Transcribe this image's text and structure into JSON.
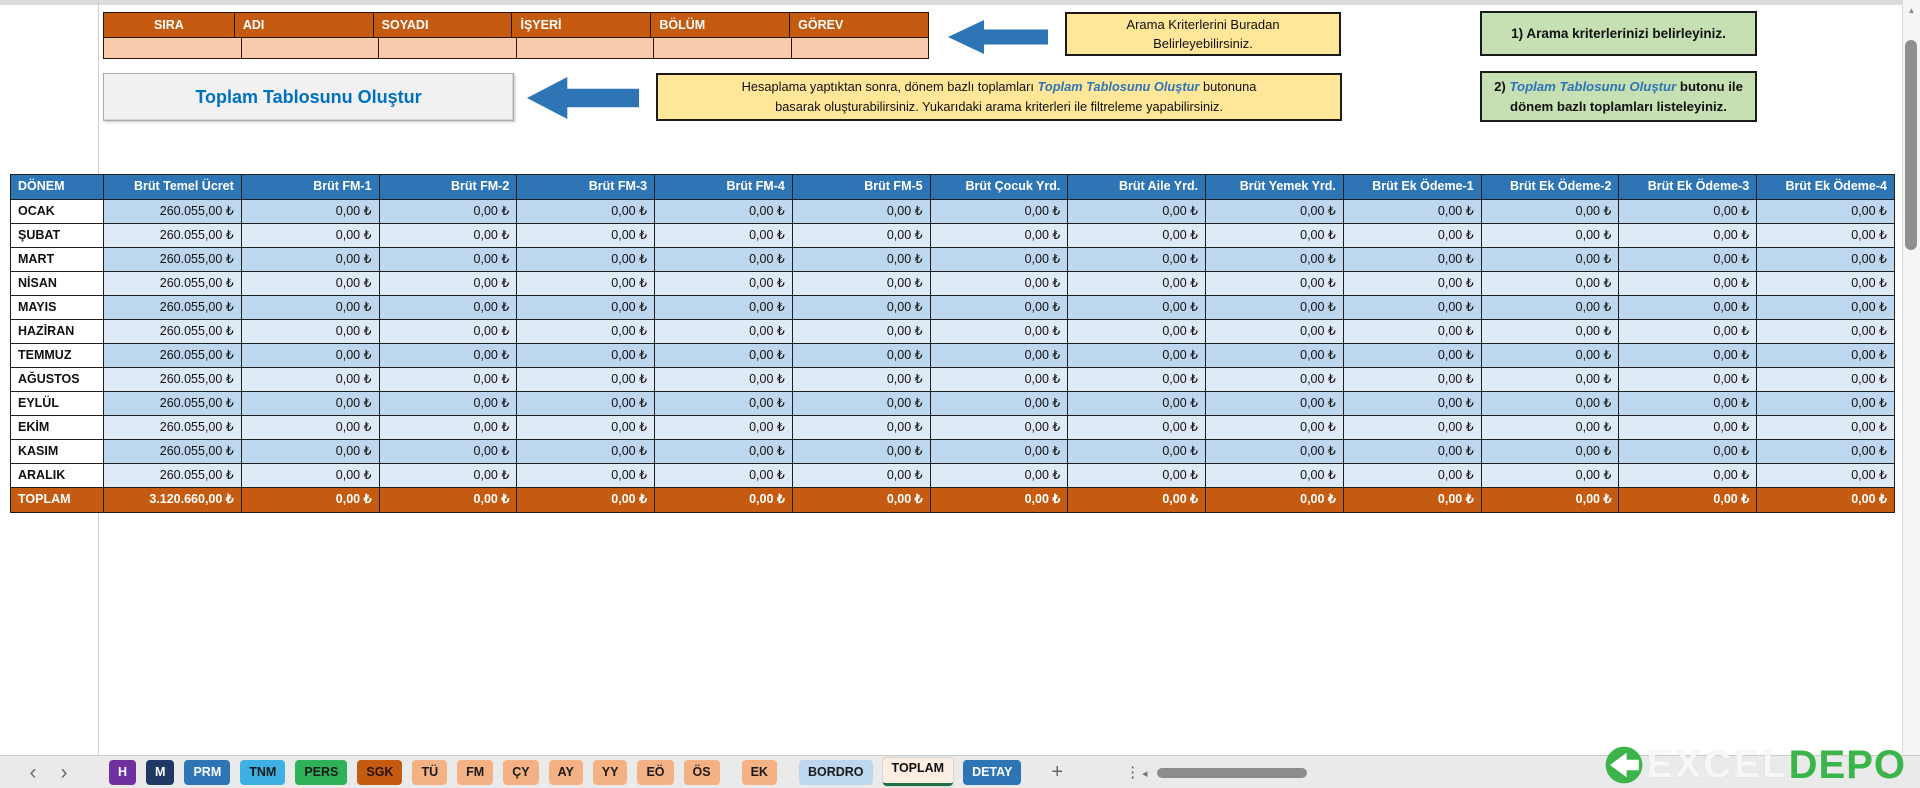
{
  "colors": {
    "header_orange": "#C55A11",
    "input_peach": "#F8CBAD",
    "table_header_blue": "#2E75B6",
    "row_blue": "#BDD7EE",
    "row_blue_light": "#DEEBF7",
    "note_yellow": "#FFE699",
    "note_green": "#C6E0B4",
    "total_orange": "#C55A11",
    "arrow_blue": "#2E75B6",
    "button_text_blue": "#0070C0",
    "logo_green": "#3BB54A"
  },
  "search_table": {
    "headers": [
      "SIRA",
      "ADI",
      "SOYADI",
      "İŞYERİ",
      "BÖLÜM",
      "GÖREV"
    ]
  },
  "button": {
    "label": "Toplam Tablosunu Oluştur"
  },
  "annotations": {
    "search_hint_line1": "Arama Kriterlerini Buradan",
    "search_hint_line2": "Belirleyebilirsiniz.",
    "step1": "1) Arama kriterlerinizi belirleyiniz.",
    "step2_pre": "2) ",
    "step2_em": "Toplam Tablosunu Oluştur",
    "step2_post": " butonu ile dönem bazlı toplamları listeleyiniz.",
    "hint_pre": "Hesaplama yaptıktan sonra, dönem bazlı toplamları ",
    "hint_em": "Toplam Tablosunu Oluştur",
    "hint_post": "  butonuna",
    "hint_line2": "basarak oluşturabilirsiniz. Yukarıdaki arama kriterleri ile filtreleme yapabilirsiniz."
  },
  "totals_table": {
    "columns": [
      "DÖNEM",
      "Brüt Temel Ücret",
      "Brüt FM-1",
      "Brüt FM-2",
      "Brüt FM-3",
      "Brüt FM-4",
      "Brüt FM-5",
      "Brüt Çocuk Yrd.",
      "Brüt Aile Yrd.",
      "Brüt Yemek Yrd.",
      "Brüt Ek Ödeme-1",
      "Brüt Ek Ödeme-2",
      "Brüt Ek Ödeme-3",
      "Brüt Ek Ödeme-4"
    ],
    "rows": [
      {
        "month": "OCAK",
        "values": [
          "260.055,00 ₺",
          "0,00 ₺",
          "0,00 ₺",
          "0,00 ₺",
          "0,00 ₺",
          "0,00 ₺",
          "0,00 ₺",
          "0,00 ₺",
          "0,00 ₺",
          "0,00 ₺",
          "0,00 ₺",
          "0,00 ₺",
          "0,00 ₺"
        ]
      },
      {
        "month": "ŞUBAT",
        "values": [
          "260.055,00 ₺",
          "0,00 ₺",
          "0,00 ₺",
          "0,00 ₺",
          "0,00 ₺",
          "0,00 ₺",
          "0,00 ₺",
          "0,00 ₺",
          "0,00 ₺",
          "0,00 ₺",
          "0,00 ₺",
          "0,00 ₺",
          "0,00 ₺"
        ]
      },
      {
        "month": "MART",
        "values": [
          "260.055,00 ₺",
          "0,00 ₺",
          "0,00 ₺",
          "0,00 ₺",
          "0,00 ₺",
          "0,00 ₺",
          "0,00 ₺",
          "0,00 ₺",
          "0,00 ₺",
          "0,00 ₺",
          "0,00 ₺",
          "0,00 ₺",
          "0,00 ₺"
        ]
      },
      {
        "month": "NİSAN",
        "values": [
          "260.055,00 ₺",
          "0,00 ₺",
          "0,00 ₺",
          "0,00 ₺",
          "0,00 ₺",
          "0,00 ₺",
          "0,00 ₺",
          "0,00 ₺",
          "0,00 ₺",
          "0,00 ₺",
          "0,00 ₺",
          "0,00 ₺",
          "0,00 ₺"
        ]
      },
      {
        "month": "MAYIS",
        "values": [
          "260.055,00 ₺",
          "0,00 ₺",
          "0,00 ₺",
          "0,00 ₺",
          "0,00 ₺",
          "0,00 ₺",
          "0,00 ₺",
          "0,00 ₺",
          "0,00 ₺",
          "0,00 ₺",
          "0,00 ₺",
          "0,00 ₺",
          "0,00 ₺"
        ]
      },
      {
        "month": "HAZİRAN",
        "values": [
          "260.055,00 ₺",
          "0,00 ₺",
          "0,00 ₺",
          "0,00 ₺",
          "0,00 ₺",
          "0,00 ₺",
          "0,00 ₺",
          "0,00 ₺",
          "0,00 ₺",
          "0,00 ₺",
          "0,00 ₺",
          "0,00 ₺",
          "0,00 ₺"
        ]
      },
      {
        "month": "TEMMUZ",
        "values": [
          "260.055,00 ₺",
          "0,00 ₺",
          "0,00 ₺",
          "0,00 ₺",
          "0,00 ₺",
          "0,00 ₺",
          "0,00 ₺",
          "0,00 ₺",
          "0,00 ₺",
          "0,00 ₺",
          "0,00 ₺",
          "0,00 ₺",
          "0,00 ₺"
        ]
      },
      {
        "month": "AĞUSTOS",
        "values": [
          "260.055,00 ₺",
          "0,00 ₺",
          "0,00 ₺",
          "0,00 ₺",
          "0,00 ₺",
          "0,00 ₺",
          "0,00 ₺",
          "0,00 ₺",
          "0,00 ₺",
          "0,00 ₺",
          "0,00 ₺",
          "0,00 ₺",
          "0,00 ₺"
        ]
      },
      {
        "month": "EYLÜL",
        "values": [
          "260.055,00 ₺",
          "0,00 ₺",
          "0,00 ₺",
          "0,00 ₺",
          "0,00 ₺",
          "0,00 ₺",
          "0,00 ₺",
          "0,00 ₺",
          "0,00 ₺",
          "0,00 ₺",
          "0,00 ₺",
          "0,00 ₺",
          "0,00 ₺"
        ]
      },
      {
        "month": "EKİM",
        "values": [
          "260.055,00 ₺",
          "0,00 ₺",
          "0,00 ₺",
          "0,00 ₺",
          "0,00 ₺",
          "0,00 ₺",
          "0,00 ₺",
          "0,00 ₺",
          "0,00 ₺",
          "0,00 ₺",
          "0,00 ₺",
          "0,00 ₺",
          "0,00 ₺"
        ]
      },
      {
        "month": "KASIM",
        "values": [
          "260.055,00 ₺",
          "0,00 ₺",
          "0,00 ₺",
          "0,00 ₺",
          "0,00 ₺",
          "0,00 ₺",
          "0,00 ₺",
          "0,00 ₺",
          "0,00 ₺",
          "0,00 ₺",
          "0,00 ₺",
          "0,00 ₺",
          "0,00 ₺"
        ]
      },
      {
        "month": "ARALIK",
        "values": [
          "260.055,00 ₺",
          "0,00 ₺",
          "0,00 ₺",
          "0,00 ₺",
          "0,00 ₺",
          "0,00 ₺",
          "0,00 ₺",
          "0,00 ₺",
          "0,00 ₺",
          "0,00 ₺",
          "0,00 ₺",
          "0,00 ₺",
          "0,00 ₺"
        ]
      }
    ],
    "total_row": {
      "label": "TOPLAM",
      "values": [
        "3.120.660,00 ₺",
        "0,00 ₺",
        "0,00 ₺",
        "0,00 ₺",
        "0,00 ₺",
        "0,00 ₺",
        "0,00 ₺",
        "0,00 ₺",
        "0,00 ₺",
        "0,00 ₺",
        "0,00 ₺",
        "0,00 ₺",
        "0,00 ₺"
      ]
    }
  },
  "sheet_tabs": [
    {
      "label": "H",
      "bg": "#7030A0",
      "fg": "#FFFFFF"
    },
    {
      "label": "M",
      "bg": "#1F3864",
      "fg": "#FFFFFF"
    },
    {
      "label": "PRM",
      "bg": "#2E75B6",
      "fg": "#FFFFFF"
    },
    {
      "label": "TNM",
      "bg": "#3FB0E4",
      "fg": "#1A1A1A"
    },
    {
      "label": "PERS",
      "bg": "#2DB257",
      "fg": "#1A1A1A"
    },
    {
      "label": "SGK",
      "bg": "#C55A11",
      "fg": "#26130A"
    },
    {
      "label": "TÜ",
      "bg": "#F4B183",
      "fg": "#1A1A1A"
    },
    {
      "label": "FM",
      "bg": "#F4B183",
      "fg": "#1A1A1A"
    },
    {
      "label": "ÇY",
      "bg": "#F4B183",
      "fg": "#1A1A1A"
    },
    {
      "label": "AY",
      "bg": "#F4B183",
      "fg": "#1A1A1A"
    },
    {
      "label": "YY",
      "bg": "#F4B183",
      "fg": "#1A1A1A"
    },
    {
      "label": "EÖ",
      "bg": "#F4B183",
      "fg": "#1A1A1A"
    },
    {
      "label": "ÖS",
      "bg": "#F4B183",
      "fg": "#1A1A1A"
    },
    {
      "label": "EK",
      "bg": "#F4B183",
      "fg": "#1A1A1A",
      "gap_before": true
    },
    {
      "label": "BORDRO",
      "bg": "#BDD7EE",
      "fg": "#1A1A1A",
      "gap_before": true
    },
    {
      "label": "TOPLAM",
      "bg": "#FCEEE2",
      "fg": "#111111",
      "active": true,
      "underline": "#1E7145"
    },
    {
      "label": "DETAY",
      "bg": "#2E75B6",
      "fg": "#FFFFFF"
    }
  ],
  "icons": {
    "prev": "‹",
    "next": "›",
    "add": "+",
    "more": "⋮",
    "scroll_left": "◂",
    "scroll_right": "▸",
    "scroll_up": "▲"
  },
  "logo": {
    "light": "EXCEL",
    "accent": "DEPO"
  }
}
